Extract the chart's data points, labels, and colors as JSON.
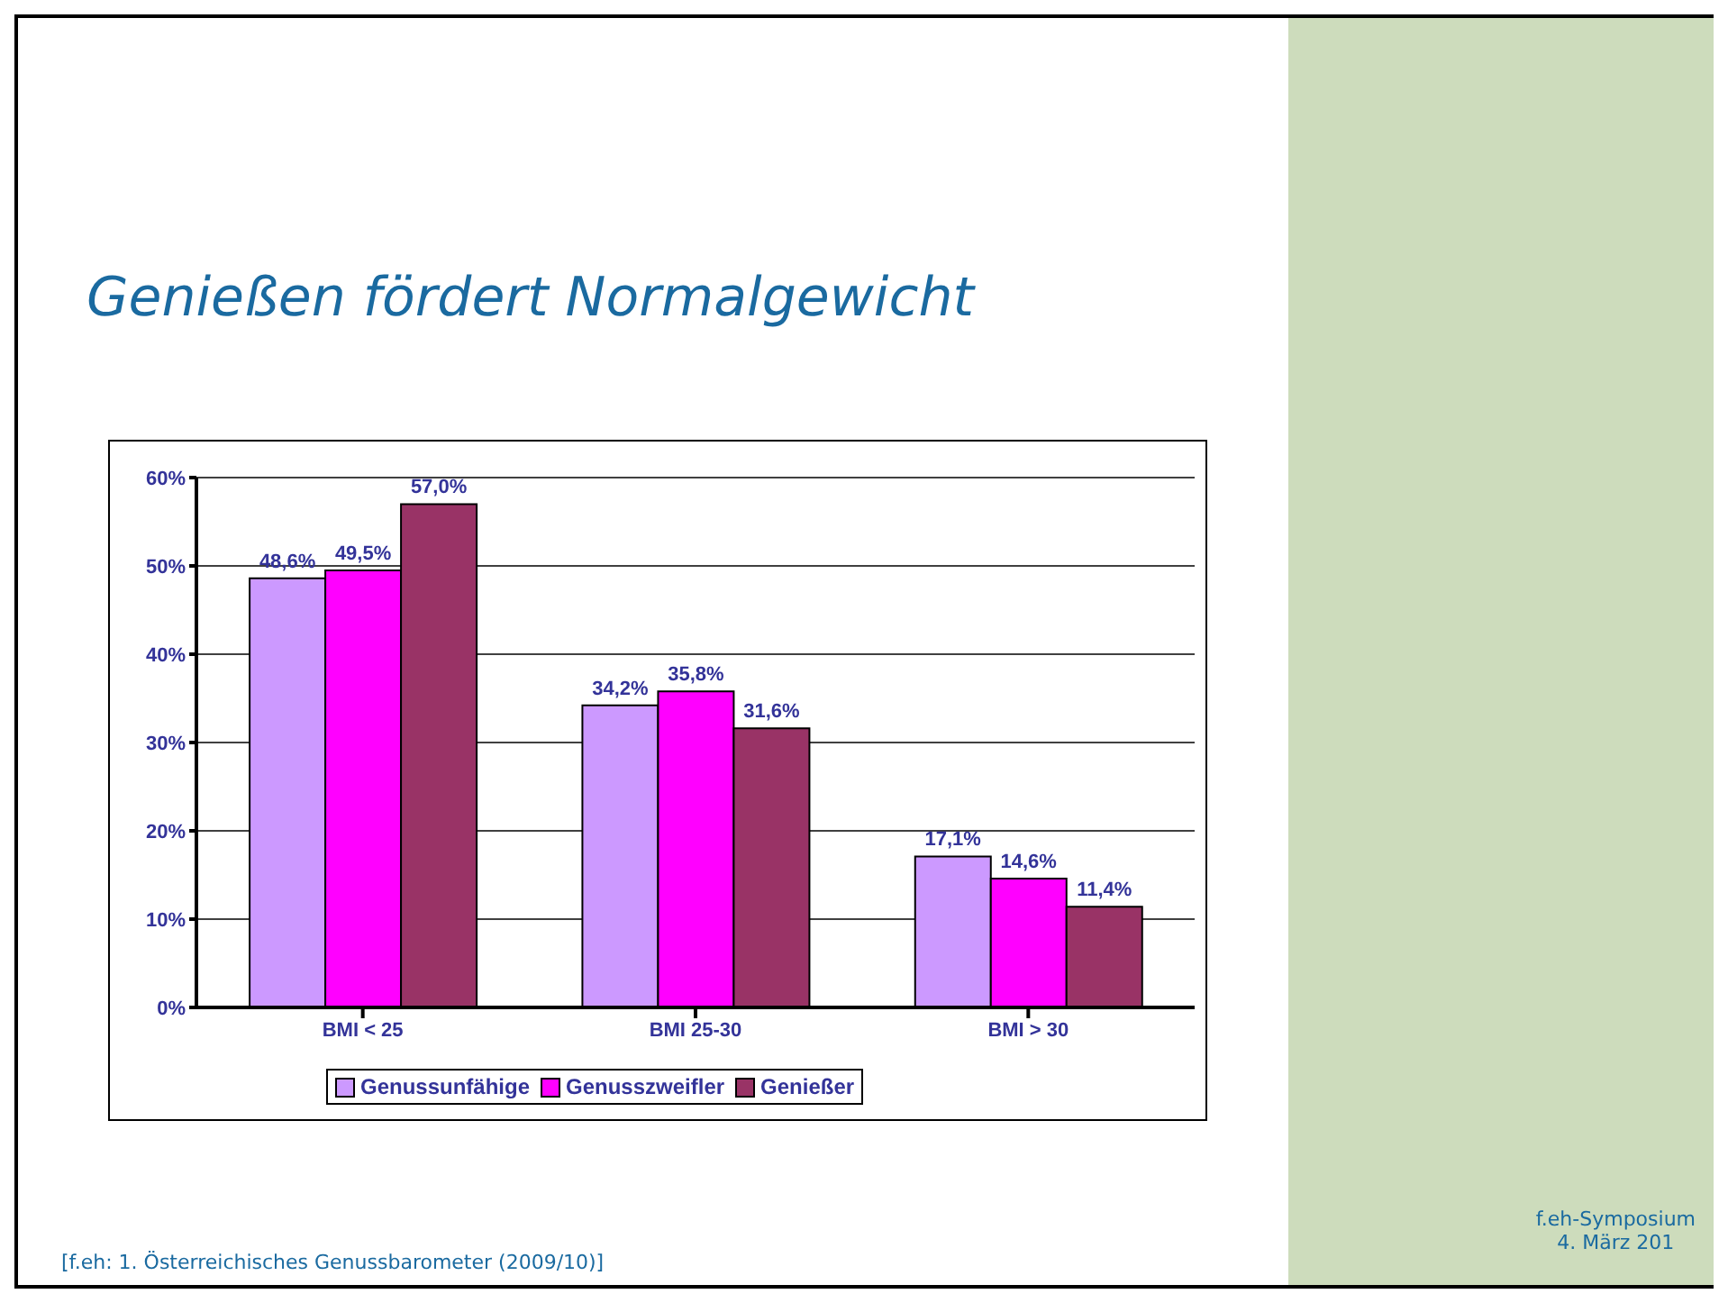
{
  "chart_data": {
    "type": "bar",
    "title": "Genießen fördert Normalgewicht",
    "categories": [
      "BMI < 25",
      "BMI 25-30",
      "BMI > 30"
    ],
    "series": [
      {
        "name": "Genussunfähige",
        "color": "#cc99ff",
        "values": [
          48.6,
          34.2,
          17.1
        ],
        "value_labels": [
          "48,6%",
          "34,2%",
          "17,1%"
        ]
      },
      {
        "name": "Genusszweifler",
        "color": "#ff00ff",
        "values": [
          49.5,
          35.8,
          14.6
        ],
        "value_labels": [
          "49,5%",
          "35,8%",
          "14,6%"
        ]
      },
      {
        "name": "Genießer",
        "color": "#993366",
        "values": [
          57.0,
          31.6,
          11.4
        ],
        "value_labels": [
          "57,0%",
          "31,6%",
          "11,4%"
        ]
      }
    ],
    "ylim": [
      0,
      60
    ],
    "yticks": [
      {
        "value": 0,
        "label": "0%"
      },
      {
        "value": 10,
        "label": "10%"
      },
      {
        "value": 20,
        "label": "20%"
      },
      {
        "value": 30,
        "label": "30%"
      },
      {
        "value": 40,
        "label": "40%"
      },
      {
        "value": 50,
        "label": "50%"
      },
      {
        "value": 60,
        "label": "60%"
      }
    ],
    "grid": "y",
    "legend": "bottom",
    "annotations": [
      "[f.eh: 1. Österreichisches Genussbarometer (2009/10)]",
      "f.eh-Symposium",
      "4. März 201"
    ]
  }
}
